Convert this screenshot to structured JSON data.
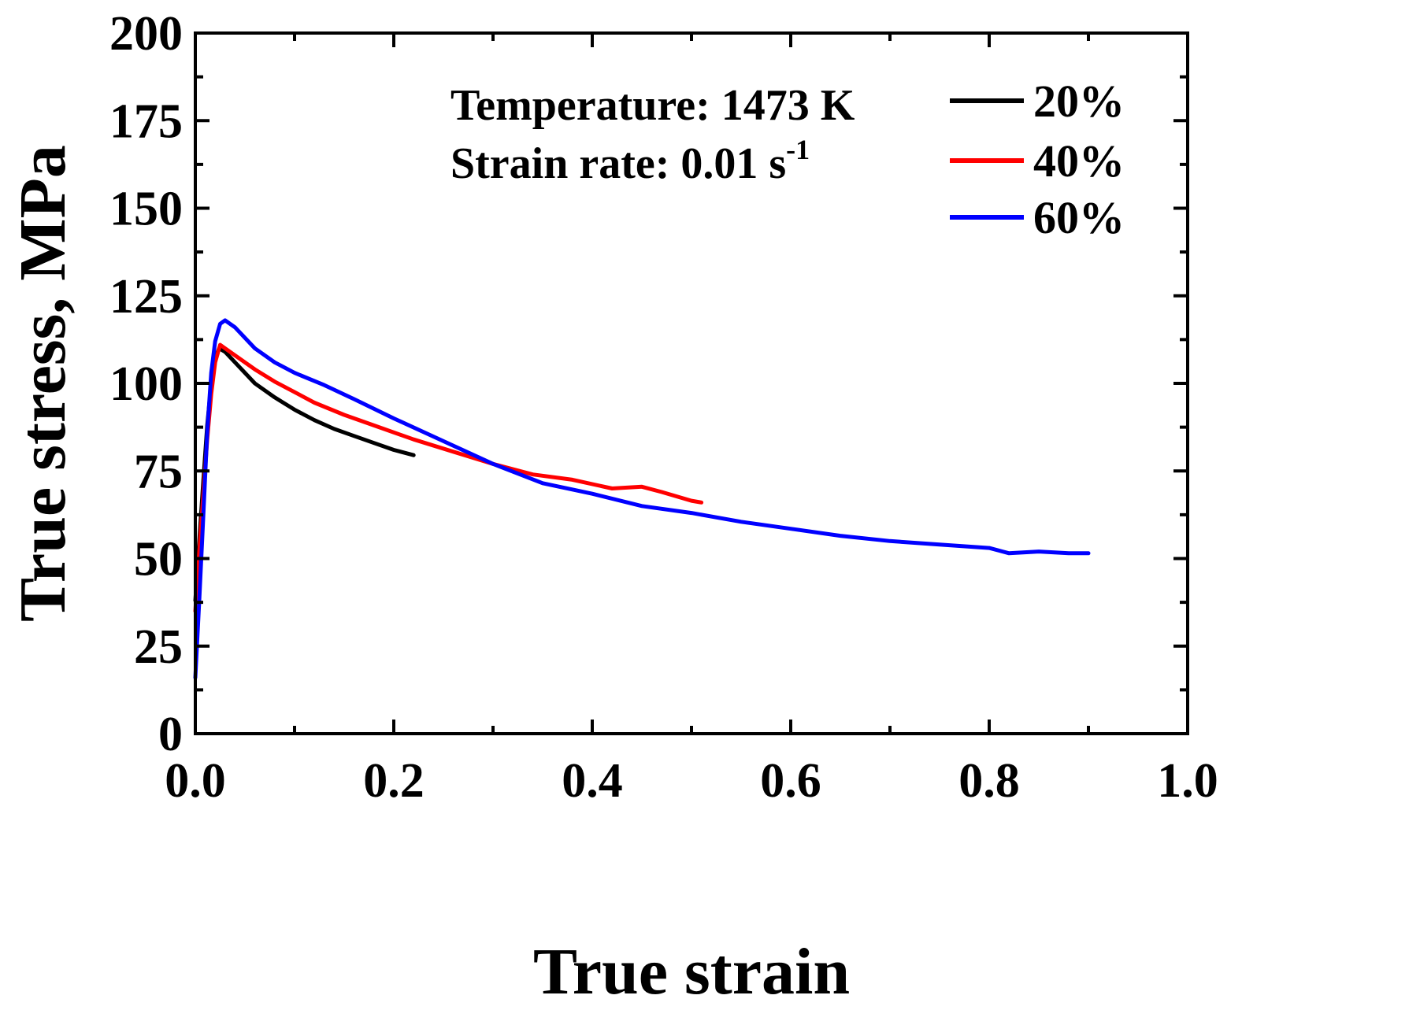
{
  "chart_data": {
    "type": "line",
    "xlabel": "True strain",
    "ylabel": "True stress, MPa",
    "xlim": [
      0.0,
      1.0
    ],
    "ylim": [
      0,
      200
    ],
    "x_ticks": [
      "0.0",
      "0.2",
      "0.4",
      "0.6",
      "0.8",
      "1.0"
    ],
    "x_tick_values": [
      0.0,
      0.2,
      0.4,
      0.6,
      0.8,
      1.0
    ],
    "y_ticks": [
      "0",
      "25",
      "50",
      "75",
      "100",
      "125",
      "150",
      "175",
      "200"
    ],
    "y_tick_values": [
      0,
      25,
      50,
      75,
      100,
      125,
      150,
      175,
      200
    ],
    "grid": false,
    "legend_position": "top-right",
    "annotations": {
      "temperature": "Temperature: 1473 K",
      "strain_rate_prefix": "Strain rate: 0.01 s",
      "strain_rate_sup": "-1"
    },
    "series": [
      {
        "name": "20%",
        "color": "#000000",
        "points": [
          [
            0.0,
            38
          ],
          [
            0.004,
            55
          ],
          [
            0.008,
            72
          ],
          [
            0.012,
            88
          ],
          [
            0.016,
            100
          ],
          [
            0.02,
            107
          ],
          [
            0.024,
            110
          ],
          [
            0.03,
            109
          ],
          [
            0.04,
            106
          ],
          [
            0.05,
            103
          ],
          [
            0.06,
            100
          ],
          [
            0.08,
            96
          ],
          [
            0.1,
            92.5
          ],
          [
            0.12,
            89.5
          ],
          [
            0.14,
            87
          ],
          [
            0.16,
            85
          ],
          [
            0.18,
            83
          ],
          [
            0.2,
            81
          ],
          [
            0.22,
            79.5
          ]
        ]
      },
      {
        "name": "40%",
        "color": "#ff0000",
        "points": [
          [
            0.0,
            35
          ],
          [
            0.004,
            52
          ],
          [
            0.008,
            68
          ],
          [
            0.012,
            84
          ],
          [
            0.016,
            97
          ],
          [
            0.02,
            106
          ],
          [
            0.025,
            111
          ],
          [
            0.03,
            110
          ],
          [
            0.04,
            108
          ],
          [
            0.06,
            104
          ],
          [
            0.08,
            100.5
          ],
          [
            0.1,
            97.5
          ],
          [
            0.12,
            94.5
          ],
          [
            0.15,
            91
          ],
          [
            0.18,
            88
          ],
          [
            0.22,
            84
          ],
          [
            0.26,
            80.5
          ],
          [
            0.3,
            77
          ],
          [
            0.34,
            74
          ],
          [
            0.38,
            72.5
          ],
          [
            0.42,
            70
          ],
          [
            0.45,
            70.5
          ],
          [
            0.47,
            69
          ],
          [
            0.5,
            66.5
          ],
          [
            0.51,
            66
          ]
        ]
      },
      {
        "name": "60%",
        "color": "#0000ff",
        "points": [
          [
            0.0,
            16
          ],
          [
            0.004,
            38
          ],
          [
            0.008,
            62
          ],
          [
            0.012,
            86
          ],
          [
            0.016,
            103
          ],
          [
            0.02,
            112
          ],
          [
            0.025,
            117
          ],
          [
            0.03,
            118
          ],
          [
            0.04,
            116
          ],
          [
            0.06,
            110
          ],
          [
            0.08,
            106
          ],
          [
            0.1,
            103
          ],
          [
            0.13,
            99.5
          ],
          [
            0.16,
            95.5
          ],
          [
            0.2,
            90
          ],
          [
            0.25,
            83.5
          ],
          [
            0.3,
            77
          ],
          [
            0.35,
            71.5
          ],
          [
            0.4,
            68.5
          ],
          [
            0.45,
            65
          ],
          [
            0.5,
            63
          ],
          [
            0.55,
            60.5
          ],
          [
            0.6,
            58.5
          ],
          [
            0.65,
            56.5
          ],
          [
            0.7,
            55
          ],
          [
            0.75,
            54
          ],
          [
            0.8,
            53
          ],
          [
            0.82,
            51.5
          ],
          [
            0.85,
            52
          ],
          [
            0.88,
            51.5
          ],
          [
            0.9,
            51.5
          ]
        ]
      }
    ]
  }
}
